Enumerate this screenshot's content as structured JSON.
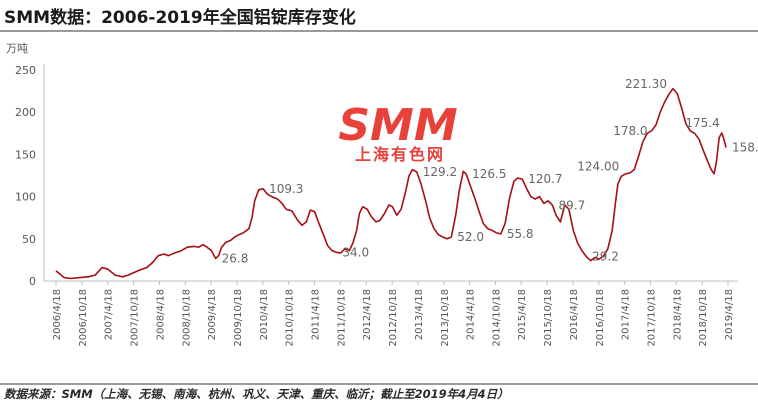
{
  "header": {
    "title": "SMM数据：2006-2019年全国铝锭库存变化"
  },
  "footer": {
    "source": "数据来源：SMM（上海、无锡、南海、杭州、巩义、天津、重庆、临沂；截止至2019年4月4日）"
  },
  "watermark": {
    "brand": "SMM",
    "subtitle": "上海有色网"
  },
  "chart_data": {
    "type": "line",
    "title": "SMM数据：2006-2019年全国铝锭库存变化",
    "ylabel": "万吨",
    "xlabel": "",
    "ylim": [
      0,
      250
    ],
    "yticks": [
      0,
      50,
      100,
      150,
      200,
      250
    ],
    "xlim": [
      "2006-04-18",
      "2019-04-18"
    ],
    "xticks": [
      "2006/4/18",
      "2006/10/18",
      "2007/4/18",
      "2007/10/18",
      "2008/4/18",
      "2008/10/18",
      "2009/4/18",
      "2009/10/18",
      "2010/4/18",
      "2010/10/18",
      "2011/4/18",
      "2011/10/18",
      "2012/4/18",
      "2012/10/18",
      "2013/4/18",
      "2013/10/18",
      "2014/4/18",
      "2014/10/18",
      "2015/4/18",
      "2015/10/18",
      "2016/4/18",
      "2016/10/18",
      "2017/4/18",
      "2017/10/18",
      "2018/4/18",
      "2018/10/18",
      "2019/4/18"
    ],
    "grid": false,
    "legend": "none",
    "line_color": "#a50f15",
    "series": [
      {
        "points": [
          [
            "2006-04-18",
            12
          ],
          [
            "2006-05-10",
            9
          ],
          [
            "2006-06-15",
            4
          ],
          [
            "2006-08-01",
            3
          ],
          [
            "2006-10-01",
            4
          ],
          [
            "2006-12-01",
            5
          ],
          [
            "2007-01-20",
            7
          ],
          [
            "2007-03-10",
            16
          ],
          [
            "2007-04-20",
            14
          ],
          [
            "2007-06-10",
            7
          ],
          [
            "2007-08-01",
            5
          ],
          [
            "2007-09-10",
            7
          ],
          [
            "2007-10-20",
            10
          ],
          [
            "2007-12-01",
            13
          ],
          [
            "2008-01-20",
            16
          ],
          [
            "2008-03-01",
            22
          ],
          [
            "2008-04-10",
            30
          ],
          [
            "2008-05-20",
            32
          ],
          [
            "2008-06-20",
            30
          ],
          [
            "2008-08-01",
            33
          ],
          [
            "2008-09-20",
            36
          ],
          [
            "2008-11-01",
            40
          ],
          [
            "2008-12-20",
            41
          ],
          [
            "2009-01-20",
            40
          ],
          [
            "2009-02-20",
            43
          ],
          [
            "2009-03-20",
            40
          ],
          [
            "2009-04-20",
            36
          ],
          [
            "2009-05-20",
            26.8
          ],
          [
            "2009-06-10",
            30
          ],
          [
            "2009-07-01",
            40
          ],
          [
            "2009-08-01",
            46
          ],
          [
            "2009-09-01",
            48
          ],
          [
            "2009-10-01",
            52
          ],
          [
            "2009-11-01",
            55
          ],
          [
            "2009-12-01",
            57
          ],
          [
            "2010-01-10",
            62
          ],
          [
            "2010-02-01",
            75
          ],
          [
            "2010-02-20",
            95
          ],
          [
            "2010-03-20",
            108
          ],
          [
            "2010-04-20",
            109.3
          ],
          [
            "2010-05-20",
            103
          ],
          [
            "2010-06-20",
            100
          ],
          [
            "2010-08-01",
            97
          ],
          [
            "2010-09-01",
            92
          ],
          [
            "2010-10-01",
            85
          ],
          [
            "2010-11-10",
            83
          ],
          [
            "2010-12-20",
            72
          ],
          [
            "2011-01-20",
            66
          ],
          [
            "2011-02-20",
            70
          ],
          [
            "2011-03-20",
            84
          ],
          [
            "2011-04-20",
            82
          ],
          [
            "2011-05-20",
            68
          ],
          [
            "2011-06-20",
            55
          ],
          [
            "2011-07-20",
            42
          ],
          [
            "2011-08-20",
            36
          ],
          [
            "2011-09-20",
            34.0
          ],
          [
            "2011-10-20",
            33
          ],
          [
            "2011-11-20",
            38
          ],
          [
            "2011-12-20",
            36
          ],
          [
            "2012-01-15",
            45
          ],
          [
            "2012-02-10",
            60
          ],
          [
            "2012-03-01",
            80
          ],
          [
            "2012-03-25",
            88
          ],
          [
            "2012-04-25",
            85
          ],
          [
            "2012-05-25",
            76
          ],
          [
            "2012-06-25",
            70
          ],
          [
            "2012-07-25",
            72
          ],
          [
            "2012-08-25",
            80
          ],
          [
            "2012-09-25",
            90
          ],
          [
            "2012-10-20",
            88
          ],
          [
            "2012-11-20",
            78
          ],
          [
            "2012-12-20",
            85
          ],
          [
            "2013-01-20",
            105
          ],
          [
            "2013-02-15",
            125
          ],
          [
            "2013-03-10",
            132
          ],
          [
            "2013-04-10",
            129.2
          ],
          [
            "2013-05-10",
            115
          ],
          [
            "2013-06-10",
            96
          ],
          [
            "2013-07-10",
            75
          ],
          [
            "2013-08-10",
            62
          ],
          [
            "2013-09-10",
            55
          ],
          [
            "2013-10-10",
            52
          ],
          [
            "2013-11-10",
            50
          ],
          [
            "2013-12-10",
            52.0
          ],
          [
            "2014-01-10",
            78
          ],
          [
            "2014-02-05",
            108
          ],
          [
            "2014-03-05",
            130
          ],
          [
            "2014-03-25",
            126.5
          ],
          [
            "2014-04-25",
            112
          ],
          [
            "2014-05-25",
            98
          ],
          [
            "2014-06-25",
            82
          ],
          [
            "2014-07-25",
            68
          ],
          [
            "2014-08-25",
            62
          ],
          [
            "2014-09-25",
            60
          ],
          [
            "2014-10-25",
            57
          ],
          [
            "2014-11-25",
            55.8
          ],
          [
            "2014-12-25",
            68
          ],
          [
            "2015-01-25",
            98
          ],
          [
            "2015-02-25",
            118
          ],
          [
            "2015-03-25",
            122
          ],
          [
            "2015-04-25",
            120.7
          ],
          [
            "2015-05-25",
            110
          ],
          [
            "2015-06-25",
            100
          ],
          [
            "2015-07-25",
            97
          ],
          [
            "2015-08-25",
            100
          ],
          [
            "2015-09-25",
            92
          ],
          [
            "2015-10-25",
            95
          ],
          [
            "2015-11-25",
            89.7
          ],
          [
            "2015-12-20",
            78
          ],
          [
            "2016-01-20",
            70
          ],
          [
            "2016-02-20",
            90
          ],
          [
            "2016-03-20",
            85
          ],
          [
            "2016-04-20",
            60
          ],
          [
            "2016-05-20",
            45
          ],
          [
            "2016-06-20",
            36
          ],
          [
            "2016-07-20",
            29.2
          ],
          [
            "2016-08-20",
            24
          ],
          [
            "2016-09-20",
            28
          ],
          [
            "2016-10-20",
            26
          ],
          [
            "2016-11-20",
            30
          ],
          [
            "2016-12-20",
            38
          ],
          [
            "2017-01-20",
            60
          ],
          [
            "2017-02-10",
            90
          ],
          [
            "2017-03-01",
            115
          ],
          [
            "2017-03-25",
            124.0
          ],
          [
            "2017-04-25",
            127
          ],
          [
            "2017-05-25",
            128
          ],
          [
            "2017-06-25",
            132
          ],
          [
            "2017-07-25",
            148
          ],
          [
            "2017-08-25",
            165
          ],
          [
            "2017-09-25",
            175
          ],
          [
            "2017-10-25",
            178.0
          ],
          [
            "2017-11-25",
            185
          ],
          [
            "2017-12-25",
            200
          ],
          [
            "2018-01-25",
            212
          ],
          [
            "2018-02-25",
            221.3
          ],
          [
            "2018-03-25",
            228
          ],
          [
            "2018-04-25",
            222
          ],
          [
            "2018-05-25",
            205
          ],
          [
            "2018-06-25",
            186
          ],
          [
            "2018-07-25",
            178
          ],
          [
            "2018-08-25",
            175
          ],
          [
            "2018-09-25",
            168
          ],
          [
            "2018-10-25",
            155
          ],
          [
            "2018-11-25",
            142
          ],
          [
            "2018-12-20",
            132
          ],
          [
            "2019-01-10",
            127
          ],
          [
            "2019-01-25",
            140
          ],
          [
            "2019-02-15",
            170
          ],
          [
            "2019-03-05",
            175.4
          ],
          [
            "2019-03-20",
            168
          ],
          [
            "2019-04-04",
            158.1
          ]
        ]
      }
    ],
    "annotations": [
      {
        "text": "26.8",
        "x": "2009-05-20",
        "y": 26.8,
        "pos": "right"
      },
      {
        "text": "109.3",
        "x": "2010-04-20",
        "y": 109.3,
        "pos": "right"
      },
      {
        "text": "34.0",
        "x": "2011-09-20",
        "y": 34.0,
        "pos": "right"
      },
      {
        "text": "129.2",
        "x": "2013-04-10",
        "y": 129.2,
        "pos": "right"
      },
      {
        "text": "52.0",
        "x": "2013-12-10",
        "y": 52.0,
        "pos": "right"
      },
      {
        "text": "126.5",
        "x": "2014-03-25",
        "y": 126.5,
        "pos": "right"
      },
      {
        "text": "55.8",
        "x": "2014-11-25",
        "y": 55.8,
        "pos": "right"
      },
      {
        "text": "120.7",
        "x": "2015-04-25",
        "y": 120.7,
        "pos": "right"
      },
      {
        "text": "89.7",
        "x": "2015-11-25",
        "y": 89.7,
        "pos": "right"
      },
      {
        "text": "29.2",
        "x": "2016-07-20",
        "y": 29.2,
        "pos": "right"
      },
      {
        "text": "124.00",
        "x": "2017-03-25",
        "y": 124.0,
        "pos": "above-left"
      },
      {
        "text": "178.0",
        "x": "2017-10-25",
        "y": 178.0,
        "pos": "left"
      },
      {
        "text": "221.30",
        "x": "2018-02-25",
        "y": 221.3,
        "pos": "above-left"
      },
      {
        "text": "175.4",
        "x": "2019-03-05",
        "y": 175.4,
        "pos": "above-left"
      },
      {
        "text": "158.",
        "x": "2019-04-04",
        "y": 158.1,
        "pos": "right"
      }
    ]
  }
}
